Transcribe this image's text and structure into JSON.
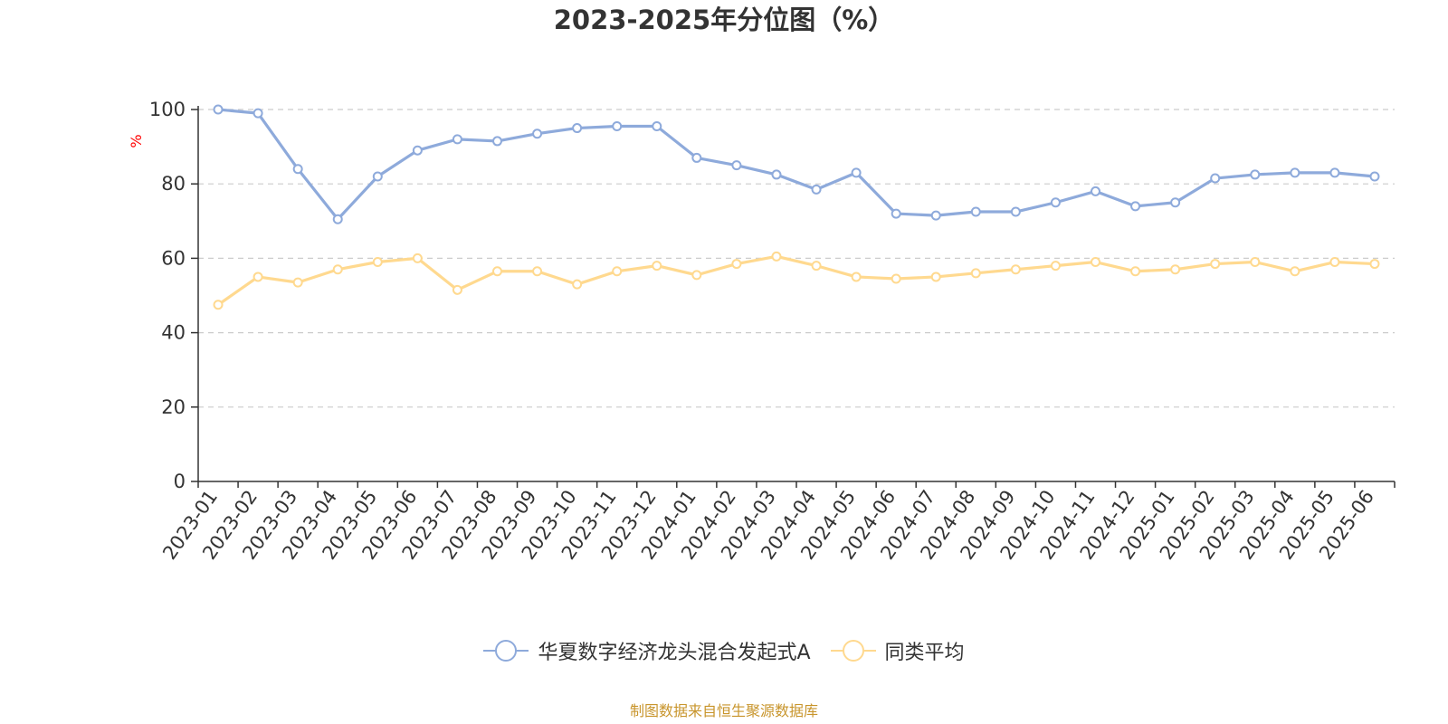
{
  "chart_data": {
    "type": "line",
    "title": "2023-2025年分位图（%）",
    "ylabel": "%",
    "ylim": [
      0,
      100
    ],
    "yticks": [
      0,
      20,
      40,
      60,
      80,
      100
    ],
    "grid": true,
    "legend_position": "bottom",
    "categories": [
      "2023-01",
      "2023-02",
      "2023-03",
      "2023-04",
      "2023-05",
      "2023-06",
      "2023-07",
      "2023-08",
      "2023-09",
      "2023-10",
      "2023-11",
      "2023-12",
      "2024-01",
      "2024-02",
      "2024-03",
      "2024-04",
      "2024-05",
      "2024-06",
      "2024-07",
      "2024-08",
      "2024-09",
      "2024-10",
      "2024-11",
      "2024-12",
      "2025-01",
      "2025-02",
      "2025-03",
      "2025-04",
      "2025-05",
      "2025-06"
    ],
    "series": [
      {
        "name": "华夏数字经济龙头混合发起式A",
        "color": "#8EAADB",
        "values": [
          100,
          99,
          84,
          70.5,
          82,
          89,
          92,
          91.5,
          93.5,
          95,
          95.5,
          95.5,
          87,
          85,
          82.5,
          78.5,
          83,
          72,
          71.5,
          72.5,
          72.5,
          75,
          78,
          74,
          75,
          81.5,
          82.5,
          83,
          83,
          82
        ]
      },
      {
        "name": "同类平均",
        "color": "#FFD98F",
        "values": [
          47.5,
          55,
          53.5,
          57,
          59,
          60,
          51.5,
          56.5,
          56.5,
          53,
          56.5,
          58,
          55.5,
          58.5,
          60.5,
          58,
          55,
          54.5,
          55,
          56,
          57,
          58,
          59,
          56.5,
          57,
          58.5,
          59,
          56.5,
          59,
          58.5
        ]
      }
    ]
  },
  "source_note": "制图数据来自恒生聚源数据库",
  "colors": {
    "title": "#333333",
    "axis": "#333333",
    "grid": "#cccccc",
    "ylabel": "#ff0000",
    "source_note": "#c8952c"
  }
}
